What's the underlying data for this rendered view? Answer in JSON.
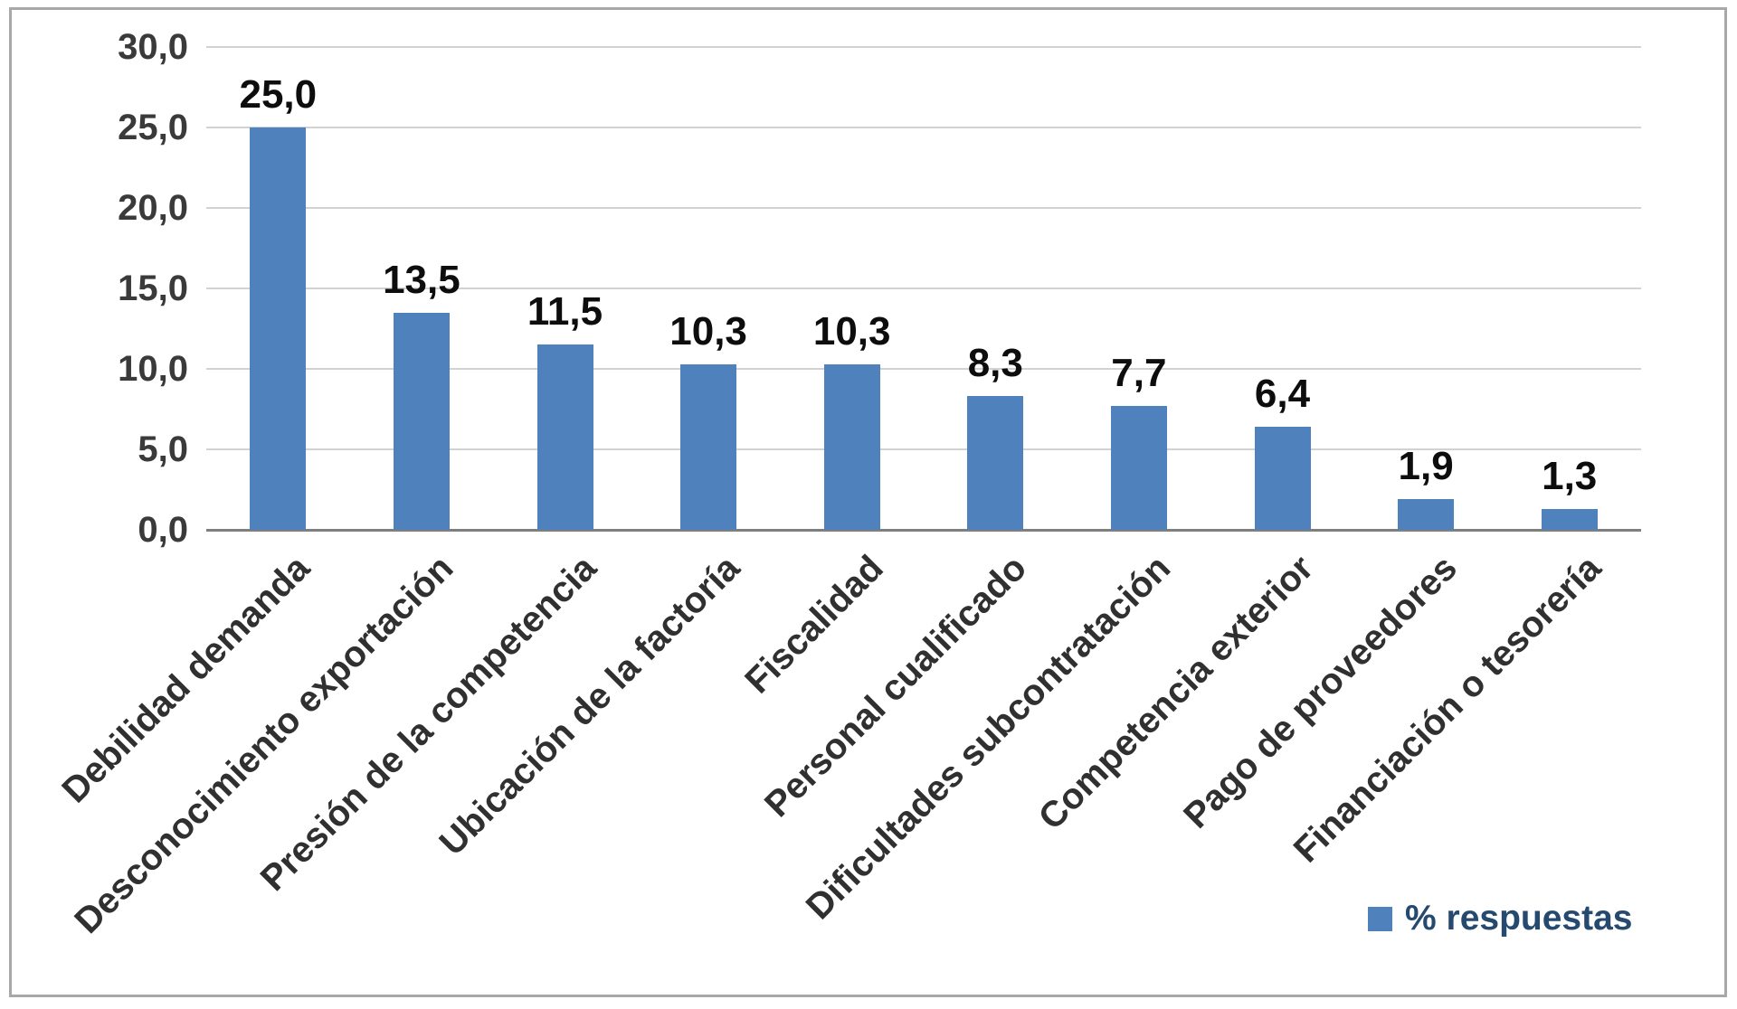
{
  "chart_data": {
    "type": "bar",
    "title": "",
    "xlabel": "",
    "ylabel": "",
    "categories": [
      "Debilidad demanda",
      "Desconocimiento exportación",
      "Presión de la competencia",
      "Ubicación de la factoría",
      "Fiscalidad",
      "Personal cualificado",
      "Dificultades subcontratación",
      "Competencia exterior",
      "Pago de proveedores",
      "Financiación o tesorería"
    ],
    "values": [
      25.0,
      13.5,
      11.5,
      10.3,
      10.3,
      8.3,
      7.7,
      6.4,
      1.9,
      1.3
    ],
    "value_labels": [
      "25,0",
      "13,5",
      "11,5",
      "10,3",
      "10,3",
      "8,3",
      "7,7",
      "6,4",
      "1,9",
      "1,3"
    ],
    "ylim": [
      0,
      30
    ],
    "ytick_step": 5,
    "ytick_labels": [
      "0,0",
      "5,0",
      "10,0",
      "15,0",
      "20,0",
      "25,0",
      "30,0"
    ],
    "grid": true,
    "legend_label": "% respuestas",
    "legend_position": "bottom-right",
    "bar_color": "#4f81bd"
  }
}
